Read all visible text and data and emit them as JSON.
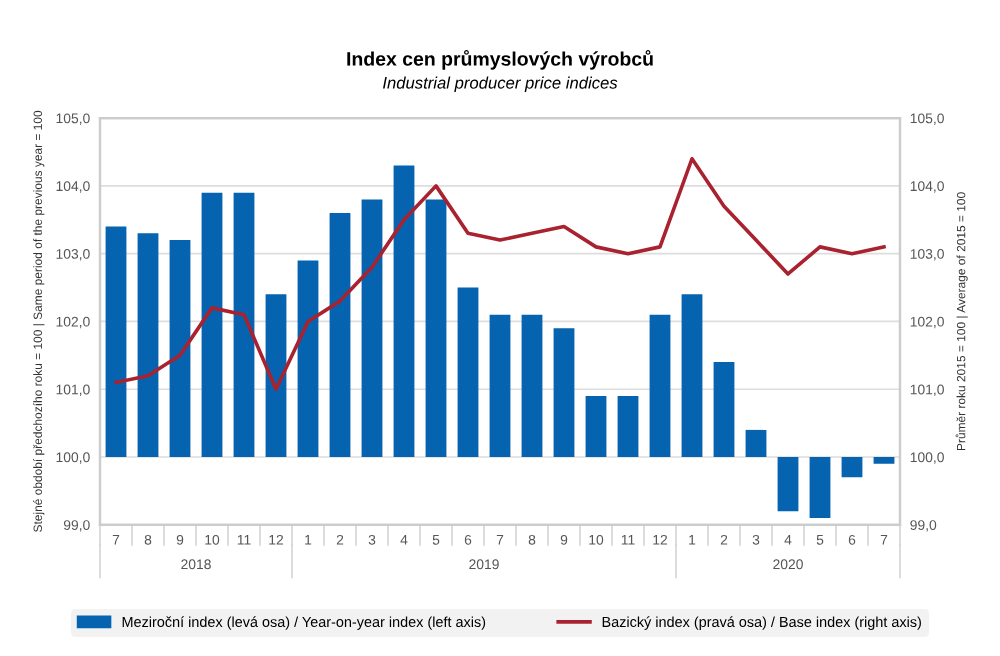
{
  "chart_data": {
    "type": "bar",
    "title": "Index cen průmyslových výrobců",
    "subtitle": "Industrial producer price indices",
    "ylabel": "Stejné období předchozího roku = 100 | Same period of the previous year = 100",
    "y2label": "Průměr roku 2015 = 100 | Average of 2015 = 100",
    "categories": [
      "7",
      "8",
      "9",
      "10",
      "11",
      "12",
      "1",
      "2",
      "3",
      "4",
      "5",
      "6",
      "7",
      "8",
      "9",
      "10",
      "11",
      "12",
      "1",
      "2",
      "3",
      "4",
      "5",
      "6",
      "7"
    ],
    "annotations": [
      "2018",
      "2019",
      "2020"
    ],
    "series": [
      {
        "name": "Meziroční index (levá osa) / Year-on-year index (left axis)",
        "color": "#0563af",
        "base": [
          100,
          100,
          100,
          100,
          100,
          100,
          100,
          100,
          100,
          100,
          100,
          100,
          100,
          100,
          100,
          100,
          100,
          100,
          100,
          100,
          100,
          100,
          100,
          100,
          100
        ],
        "values": [
          3.4,
          3.3,
          3.2,
          3.9,
          3.9,
          2.4,
          2.9,
          3.6,
          3.8,
          4.3,
          3.8,
          2.5,
          2.1,
          2.1,
          1.9,
          0.9,
          0.9,
          2.1,
          2.4,
          1.4,
          0.4,
          -0.8,
          -0.9,
          -0.3,
          -0.1
        ]
      },
      {
        "name": "Bazický index (pravá osa) / Base index (right axis)",
        "type": "line",
        "axis": "y2",
        "color": "#a8232f",
        "values": [
          101.1,
          101.2,
          101.5,
          102.2,
          102.1,
          101.0,
          102.0,
          102.3,
          102.8,
          103.5,
          104.0,
          103.3,
          103.2,
          103.3,
          103.4,
          103.1,
          103.0,
          103.1,
          104.4,
          103.7,
          103.2,
          102.7,
          103.1,
          103.0,
          103.1
        ]
      }
    ],
    "ylim": [
      99,
      105
    ],
    "yticks": [
      {
        "value": 99,
        "label": "99,0"
      },
      {
        "value": 100,
        "label": "100,0"
      },
      {
        "value": 101,
        "label": "101,0"
      },
      {
        "value": 102,
        "label": "102,0"
      },
      {
        "value": 103,
        "label": "103,0"
      },
      {
        "value": 104,
        "label": "104,0"
      },
      {
        "value": 105,
        "label": "105,0"
      }
    ],
    "y2lim": [
      99,
      105
    ],
    "y2ticks": [
      {
        "value": 99,
        "label": "99,0"
      },
      {
        "value": 100,
        "label": "100,0"
      },
      {
        "value": 101,
        "label": "101,0"
      },
      {
        "value": 102,
        "label": "102,0"
      },
      {
        "value": 103,
        "label": "103,0"
      },
      {
        "value": 104,
        "label": "104,0"
      },
      {
        "value": 105,
        "label": "105,0"
      }
    ],
    "grid": "y",
    "legend": "bottom",
    "marker": "none",
    "line_style": "solid"
  }
}
